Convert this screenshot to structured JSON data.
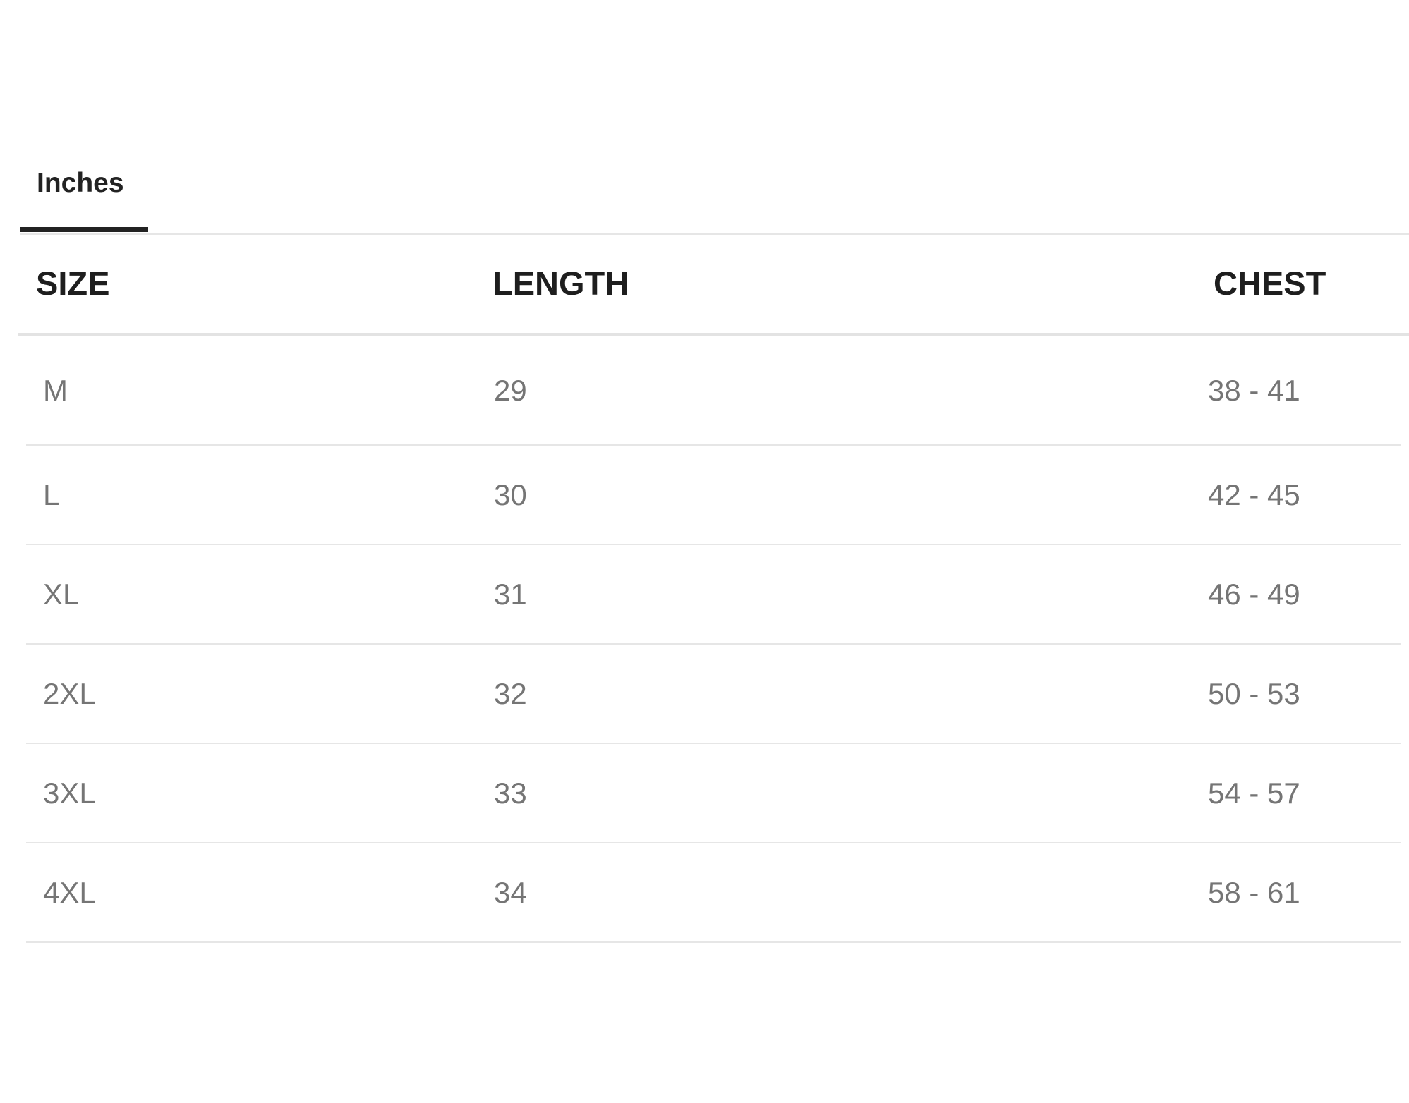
{
  "tabs": [
    {
      "label": "Inches",
      "active": true
    }
  ],
  "table": {
    "headers": [
      "SIZE",
      "LENGTH",
      "CHEST"
    ],
    "rows": [
      [
        "M",
        "29",
        "38 - 41"
      ],
      [
        "L",
        "30",
        "42 - 45"
      ],
      [
        "XL",
        "31",
        "46 - 49"
      ],
      [
        "2XL",
        "32",
        "50 - 53"
      ],
      [
        "3XL",
        "33",
        "54 - 57"
      ],
      [
        "4XL",
        "34",
        "58 - 61"
      ]
    ]
  }
}
